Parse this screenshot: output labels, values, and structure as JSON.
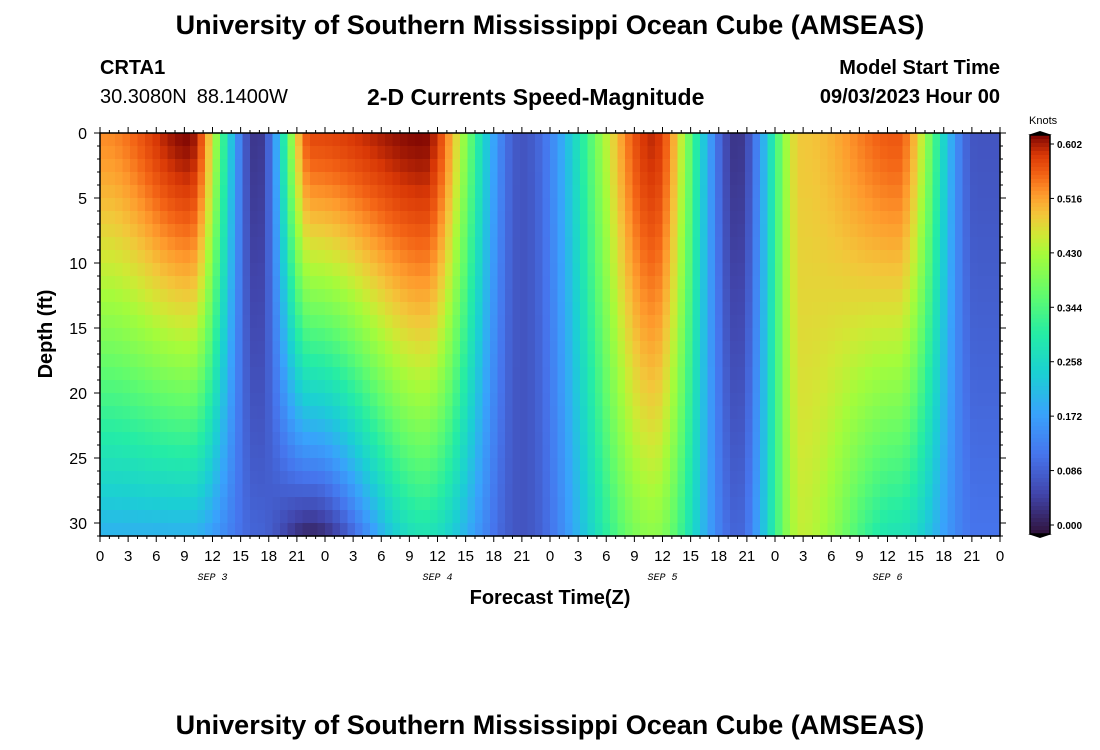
{
  "header": {
    "title": "University of Southern Mississippi Ocean Cube (AMSEAS)",
    "station_id": "CRTA1",
    "latitude": "30.3080N",
    "longitude": "88.1400W",
    "product": "2-D Currents Speed-Magnitude",
    "model_start_label": "Model Start Time",
    "model_start_value": "09/03/2023 Hour 00"
  },
  "footer": {
    "title": "University of Southern Mississippi Ocean Cube (AMSEAS)"
  },
  "chart_data": {
    "type": "heatmap",
    "title": "2-D Currents Speed-Magnitude",
    "xlabel": "Forecast Time(Z)",
    "ylabel": "Depth (ft)",
    "x_range_hours": [
      0,
      96
    ],
    "y_range_ft": [
      0,
      31
    ],
    "y_reversed": true,
    "x_tick_hours": [
      0,
      3,
      6,
      9,
      12,
      15,
      18,
      21,
      24,
      27,
      30,
      33,
      36,
      39,
      42,
      45,
      48,
      51,
      54,
      57,
      60,
      63,
      66,
      69,
      72,
      75,
      78,
      81,
      84,
      87,
      90,
      93,
      96
    ],
    "x_tick_labels": [
      "0",
      "3",
      "6",
      "9",
      "12",
      "15",
      "18",
      "21",
      "0",
      "3",
      "6",
      "9",
      "12",
      "15",
      "18",
      "21",
      "0",
      "3",
      "6",
      "9",
      "12",
      "15",
      "18",
      "21",
      "0",
      "3",
      "6",
      "9",
      "12",
      "15",
      "18",
      "21",
      "0"
    ],
    "y_ticks": [
      0,
      5,
      10,
      15,
      20,
      25,
      30
    ],
    "day_labels": [
      {
        "label": "SEP 3",
        "hour": 12
      },
      {
        "label": "SEP 4",
        "hour": 36
      },
      {
        "label": "SEP 5",
        "hour": 60
      },
      {
        "label": "SEP 6",
        "hour": 84
      }
    ],
    "colorbar": {
      "label": "Knots",
      "min": 0.0,
      "max": 0.602,
      "ticks": [
        "0.602",
        "0.516",
        "0.430",
        "0.344",
        "0.258",
        "0.172",
        "0.086",
        "0.000"
      ]
    },
    "speed_features": [
      {
        "center_hour": 0.5,
        "surface_knots": 0.52,
        "bottom_knots": 0.2
      },
      {
        "center_hour": 9.5,
        "surface_knots": 0.6,
        "bottom_knots": 0.2
      },
      {
        "center_hour": 16.8,
        "surface_knots": 0.04,
        "bottom_knots": 0.1
      },
      {
        "center_hour": 22.5,
        "surface_knots": 0.56,
        "bottom_knots": 0.02
      },
      {
        "center_hour": 34.5,
        "surface_knots": 0.6,
        "bottom_knots": 0.28
      },
      {
        "center_hour": 45.0,
        "surface_knots": 0.08,
        "bottom_knots": 0.08
      },
      {
        "center_hour": 59.0,
        "surface_knots": 0.58,
        "bottom_knots": 0.4
      },
      {
        "center_hour": 68.0,
        "surface_knots": 0.04,
        "bottom_knots": 0.1
      },
      {
        "center_hour": 74.8,
        "surface_knots": 0.48,
        "bottom_knots": 0.44
      },
      {
        "center_hour": 85.0,
        "surface_knots": 0.55,
        "bottom_knots": 0.28
      },
      {
        "center_hour": 93.5,
        "surface_knots": 0.08,
        "bottom_knots": 0.12
      }
    ]
  }
}
